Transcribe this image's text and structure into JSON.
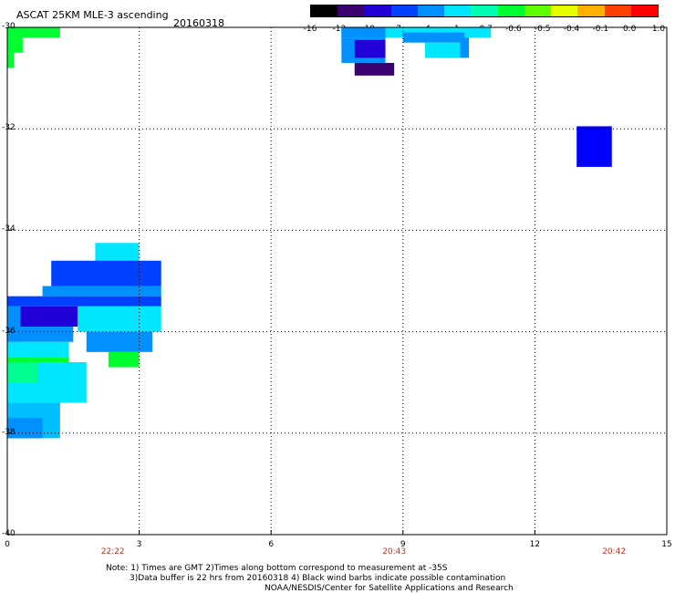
{
  "header": {
    "title": "ASCAT 25KM MLE-3 ascending",
    "date": "20160318"
  },
  "colorbar": {
    "labels": [
      "-16",
      "-13",
      "-10",
      "-7",
      "-4",
      "-1",
      "-0.7",
      "-0.6",
      "-0.5",
      "-0.4",
      "-0.1",
      "0.0",
      "1.0"
    ],
    "colors": [
      "#000000",
      "#3a0070",
      "#2200d8",
      "#0040ff",
      "#0090ff",
      "#00e6ff",
      "#00ffb4",
      "#00ff30",
      "#60ff00",
      "#e8ff00",
      "#ffb000",
      "#ff4000",
      "#ff0000"
    ]
  },
  "times": [
    {
      "label": "22:22",
      "x": 2.4
    },
    {
      "label": "20:43",
      "x": 8.8
    },
    {
      "label": "20:42",
      "x": 13.8
    }
  ],
  "notes": {
    "line1": "Note: 1) Times are GMT 2)Times along bottom correspond to measurement at -35S",
    "line2": "3)Data buffer is 22 hrs from 20160318 4) Black wind barbs indicate possible contamination",
    "line3": "NOAA/NESDIS/Center for Satellite Applications and Research"
  },
  "chart_data": {
    "type": "heatmap",
    "title": "ASCAT 25KM MLE-3 ascending",
    "xlim": [
      0,
      15
    ],
    "ylim": [
      -40,
      -30
    ],
    "xticks": [
      0,
      3,
      6,
      9,
      12,
      15
    ],
    "yticks": [
      -30,
      -32,
      -34,
      -36,
      -38,
      -40
    ],
    "grid": true,
    "cells": [
      {
        "x": [
          0,
          1.2
        ],
        "y": [
          -30.2,
          -30.0
        ],
        "c": "#00ff30"
      },
      {
        "x": [
          0,
          0.35
        ],
        "y": [
          -30.5,
          -30.2
        ],
        "c": "#00ff30"
      },
      {
        "x": [
          0,
          0.15
        ],
        "y": [
          -30.5,
          -30.8
        ],
        "c": "#00ff30"
      },
      {
        "x": [
          7.6,
          11.0
        ],
        "y": [
          -30.2,
          -30.0
        ],
        "c": "#00e6ff"
      },
      {
        "x": [
          7.6,
          8.6
        ],
        "y": [
          -30.2,
          -30.0
        ],
        "c": "#0090ff"
      },
      {
        "x": [
          7.6,
          8.6
        ],
        "y": [
          -30.7,
          -30.2
        ],
        "c": "#0090ff"
      },
      {
        "x": [
          7.9,
          8.6
        ],
        "y": [
          -30.6,
          -30.25
        ],
        "c": "#2200d8"
      },
      {
        "x": [
          7.9,
          8.8
        ],
        "y": [
          -30.95,
          -30.7
        ],
        "c": "#3a0070"
      },
      {
        "x": [
          9.0,
          10.4
        ],
        "y": [
          -30.3,
          -30.1
        ],
        "c": "#0090ff"
      },
      {
        "x": [
          9.5,
          10.3
        ],
        "y": [
          -30.6,
          -30.3
        ],
        "c": "#00e6ff"
      },
      {
        "x": [
          10.3,
          10.5
        ],
        "y": [
          -30.6,
          -30.2
        ],
        "c": "#0090ff"
      },
      {
        "x": [
          12.95,
          13.75
        ],
        "y": [
          -32.75,
          -31.95
        ],
        "c": "#0000ff"
      },
      {
        "x": [
          2.0,
          3.0
        ],
        "y": [
          -34.8,
          -34.25
        ],
        "c": "#00e6ff"
      },
      {
        "x": [
          1.0,
          3.5
        ],
        "y": [
          -35.1,
          -34.6
        ],
        "c": "#0040ff"
      },
      {
        "x": [
          0.8,
          3.5
        ],
        "y": [
          -35.3,
          -35.1
        ],
        "c": "#0090ff"
      },
      {
        "x": [
          0.0,
          3.5
        ],
        "y": [
          -35.5,
          -35.3
        ],
        "c": "#0040ff"
      },
      {
        "x": [
          0.3,
          1.6
        ],
        "y": [
          -35.9,
          -35.5
        ],
        "c": "#2200d8"
      },
      {
        "x": [
          0.0,
          0.3
        ],
        "y": [
          -36.2,
          -35.5
        ],
        "c": "#0090ff"
      },
      {
        "x": [
          1.6,
          3.5
        ],
        "y": [
          -36.0,
          -35.5
        ],
        "c": "#00e6ff"
      },
      {
        "x": [
          0.0,
          1.5
        ],
        "y": [
          -36.2,
          -35.9
        ],
        "c": "#0090ff"
      },
      {
        "x": [
          1.8,
          3.3
        ],
        "y": [
          -36.4,
          -36.0
        ],
        "c": "#0090ff"
      },
      {
        "x": [
          0.0,
          1.4
        ],
        "y": [
          -36.5,
          -36.2
        ],
        "c": "#00e6ff"
      },
      {
        "x": [
          0.0,
          1.4
        ],
        "y": [
          -36.6,
          -36.5
        ],
        "c": "#00ff30"
      },
      {
        "x": [
          2.3,
          3.0
        ],
        "y": [
          -36.7,
          -36.4
        ],
        "c": "#00ff30"
      },
      {
        "x": [
          0.0,
          1.8
        ],
        "y": [
          -37.4,
          -36.6
        ],
        "c": "#00e6ff"
      },
      {
        "x": [
          0.0,
          0.7
        ],
        "y": [
          -37.0,
          -36.6
        ],
        "c": "#00ff90"
      },
      {
        "x": [
          0.0,
          1.2
        ],
        "y": [
          -38.1,
          -37.4
        ],
        "c": "#00bfff"
      },
      {
        "x": [
          0.0,
          0.8
        ],
        "y": [
          -38.1,
          -37.7
        ],
        "c": "#0090ff"
      }
    ]
  }
}
